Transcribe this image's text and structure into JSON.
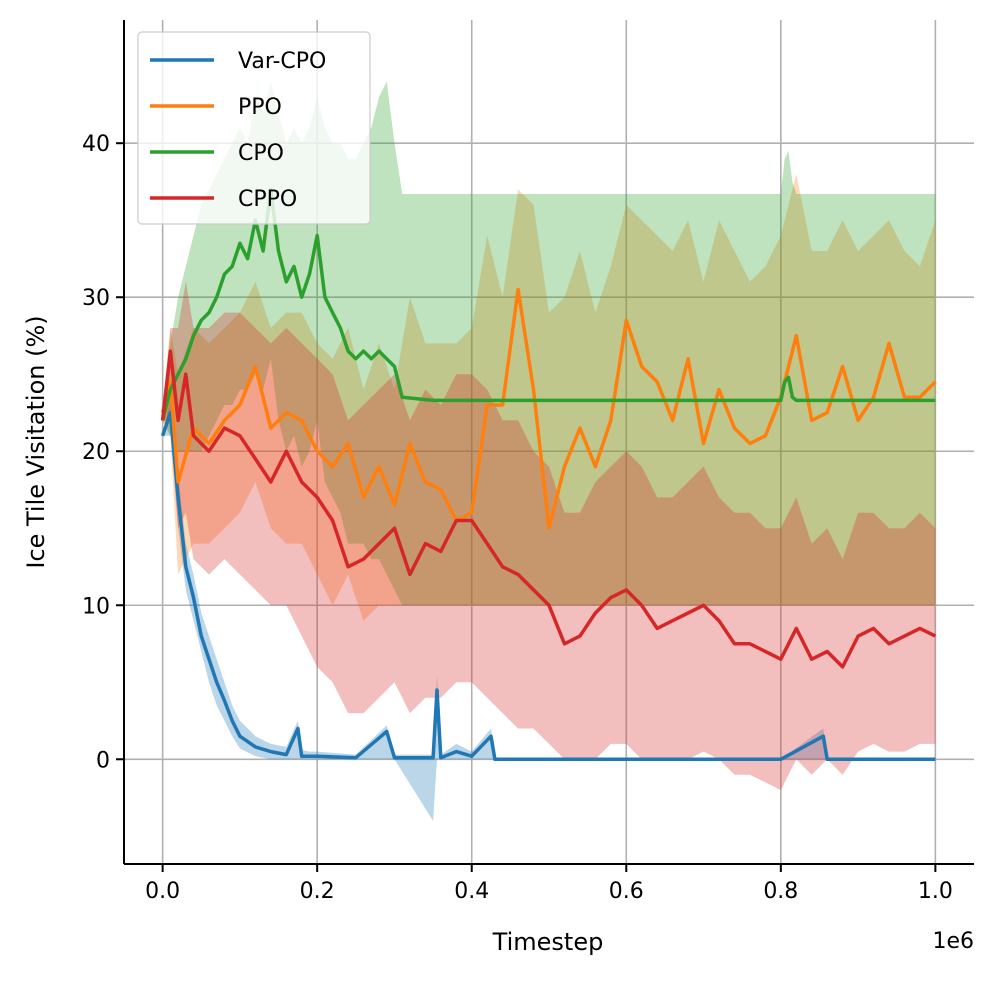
{
  "chart_data": {
    "type": "line",
    "title": "",
    "xlabel": "Timestep",
    "ylabel": "Ice Tile Visitation (%)",
    "x_multiplier_label": "1e6",
    "xlim": [
      -0.05,
      1.05
    ],
    "ylim": [
      -6.8,
      48
    ],
    "xticks": [
      0.0,
      0.2,
      0.4,
      0.6,
      0.8,
      1.0
    ],
    "xtick_labels": [
      "0.0",
      "0.2",
      "0.4",
      "0.6",
      "0.8",
      "1.0"
    ],
    "yticks": [
      0,
      10,
      20,
      30,
      40
    ],
    "ytick_labels": [
      "0",
      "10",
      "20",
      "30",
      "40"
    ],
    "grid": true,
    "legend_position": "top-left",
    "series": [
      {
        "name": "Var-CPO",
        "color": "#1f77b4",
        "x": [
          0.0,
          0.01,
          0.02,
          0.03,
          0.04,
          0.05,
          0.06,
          0.07,
          0.08,
          0.09,
          0.1,
          0.12,
          0.14,
          0.16,
          0.175,
          0.18,
          0.19,
          0.2,
          0.25,
          0.29,
          0.3,
          0.35,
          0.355,
          0.36,
          0.38,
          0.4,
          0.425,
          0.43,
          0.5,
          0.6,
          0.7,
          0.8,
          0.855,
          0.86,
          0.9,
          1.0
        ],
        "values": [
          21.0,
          22.5,
          17.0,
          12.5,
          10.5,
          8.0,
          6.5,
          5.0,
          3.8,
          2.5,
          1.5,
          0.8,
          0.5,
          0.3,
          2.0,
          0.2,
          0.2,
          0.2,
          0.1,
          1.8,
          0.1,
          0.1,
          4.5,
          0.1,
          0.5,
          0.2,
          1.5,
          0.0,
          0.0,
          0.0,
          0.0,
          0.0,
          1.5,
          0.0,
          0.0,
          0.0
        ],
        "lower": [
          21.0,
          21.0,
          15.0,
          11.0,
          9.0,
          7.0,
          5.0,
          3.5,
          2.5,
          1.5,
          0.7,
          0.2,
          0.0,
          0.0,
          0.0,
          0.0,
          0.0,
          0.0,
          0.0,
          0.0,
          0.0,
          -4.0,
          0.0,
          0.0,
          0.0,
          0.0,
          0.0,
          0.0,
          0.0,
          0.0,
          0.0,
          0.0,
          0.0,
          0.0,
          0.0,
          0.0
        ],
        "upper": [
          21.0,
          23.5,
          18.5,
          14.0,
          12.0,
          9.5,
          8.0,
          6.5,
          5.0,
          3.5,
          2.5,
          1.5,
          1.0,
          0.8,
          2.5,
          0.6,
          0.5,
          0.5,
          0.3,
          2.2,
          0.3,
          0.3,
          5.5,
          0.3,
          1.0,
          0.5,
          2.0,
          0.0,
          0.0,
          0.0,
          0.0,
          0.0,
          2.0,
          0.0,
          0.0,
          0.0
        ]
      },
      {
        "name": "PPO",
        "color": "#ff7f0e",
        "x": [
          0.0,
          0.01,
          0.02,
          0.04,
          0.06,
          0.08,
          0.1,
          0.12,
          0.14,
          0.16,
          0.18,
          0.2,
          0.22,
          0.24,
          0.26,
          0.28,
          0.3,
          0.32,
          0.34,
          0.36,
          0.38,
          0.4,
          0.42,
          0.44,
          0.46,
          0.48,
          0.5,
          0.52,
          0.54,
          0.56,
          0.58,
          0.6,
          0.62,
          0.64,
          0.66,
          0.68,
          0.7,
          0.72,
          0.74,
          0.76,
          0.78,
          0.8,
          0.82,
          0.84,
          0.86,
          0.88,
          0.9,
          0.92,
          0.94,
          0.96,
          0.98,
          1.0
        ],
        "values": [
          22.5,
          24.5,
          18.0,
          21.5,
          20.5,
          22.0,
          23.0,
          25.5,
          21.5,
          22.5,
          22.0,
          20.0,
          19.0,
          20.5,
          17.0,
          19.0,
          16.5,
          20.5,
          18.0,
          17.5,
          15.5,
          16.0,
          23.0,
          23.0,
          30.5,
          24.0,
          15.0,
          19.0,
          21.5,
          19.0,
          22.0,
          28.5,
          25.5,
          24.5,
          22.0,
          26.0,
          20.5,
          24.0,
          21.5,
          20.5,
          21.0,
          23.5,
          27.5,
          22.0,
          22.5,
          25.5,
          22.0,
          23.5,
          27.0,
          23.5,
          23.5,
          24.5
        ],
        "lower": [
          22.0,
          21.0,
          12.0,
          14.0,
          14.0,
          15.0,
          16.0,
          18.0,
          15.0,
          14.0,
          14.0,
          12.0,
          10.0,
          12.0,
          9.0,
          10.0,
          10.0,
          10.0,
          10.0,
          10.0,
          10.0,
          10.0,
          10.0,
          10.0,
          10.0,
          10.0,
          10.0,
          10.0,
          10.0,
          10.0,
          10.0,
          10.0,
          10.0,
          10.0,
          10.0,
          10.0,
          10.0,
          10.0,
          10.0,
          10.0,
          10.0,
          10.0,
          10.0,
          10.0,
          10.0,
          10.0,
          10.0,
          10.0,
          10.0,
          10.0,
          10.0,
          10.0
        ],
        "upper": [
          23.0,
          28.0,
          25.0,
          28.0,
          27.0,
          28.0,
          29.0,
          31.0,
          28.0,
          29.0,
          29.0,
          27.0,
          26.0,
          28.0,
          24.0,
          27.0,
          24.0,
          30.0,
          27.0,
          27.0,
          27.0,
          28.0,
          34.0,
          30.0,
          37.0,
          36.0,
          29.0,
          30.0,
          33.0,
          29.0,
          32.0,
          36.0,
          35.0,
          34.0,
          33.0,
          35.0,
          31.0,
          35.0,
          33.0,
          31.0,
          32.0,
          34.0,
          38.0,
          33.0,
          33.0,
          35.0,
          33.0,
          34.0,
          35.0,
          33.0,
          32.0,
          35.0
        ]
      },
      {
        "name": "CPO",
        "color": "#2ca02c",
        "x": [
          0.0,
          0.01,
          0.02,
          0.03,
          0.04,
          0.05,
          0.06,
          0.07,
          0.08,
          0.09,
          0.1,
          0.11,
          0.12,
          0.13,
          0.14,
          0.15,
          0.16,
          0.17,
          0.18,
          0.19,
          0.2,
          0.21,
          0.22,
          0.23,
          0.24,
          0.25,
          0.26,
          0.27,
          0.28,
          0.29,
          0.3,
          0.31,
          0.35,
          0.4,
          0.5,
          0.6,
          0.7,
          0.8,
          0.805,
          0.81,
          0.815,
          0.82,
          0.9,
          1.0
        ],
        "values": [
          22.0,
          24.0,
          25.0,
          26.0,
          27.5,
          28.5,
          29.0,
          30.0,
          31.5,
          32.0,
          33.5,
          32.5,
          35.0,
          33.0,
          37.0,
          33.0,
          31.0,
          32.0,
          30.0,
          31.5,
          34.0,
          30.0,
          29.0,
          28.0,
          26.5,
          26.0,
          26.5,
          26.0,
          26.5,
          26.0,
          25.5,
          23.5,
          23.3,
          23.3,
          23.3,
          23.3,
          23.3,
          23.3,
          24.5,
          24.8,
          23.5,
          23.3,
          23.3,
          23.3
        ],
        "lower": [
          22.0,
          21.0,
          20.0,
          20.0,
          20.0,
          20.0,
          21.0,
          22.0,
          23.0,
          23.0,
          24.0,
          24.0,
          25.0,
          24.0,
          26.0,
          22.0,
          20.0,
          21.0,
          19.0,
          20.0,
          22.0,
          18.0,
          17.0,
          16.0,
          14.0,
          14.0,
          14.0,
          13.0,
          13.0,
          12.0,
          11.0,
          10.0,
          10.0,
          10.0,
          10.0,
          10.0,
          10.0,
          10.0,
          10.0,
          10.0,
          10.0,
          10.0,
          10.0,
          10.0
        ],
        "upper": [
          22.0,
          27.0,
          30.0,
          32.0,
          34.0,
          36.0,
          37.0,
          38.0,
          39.0,
          40.0,
          41.0,
          40.0,
          43.0,
          42.0,
          44.0,
          42.0,
          40.0,
          41.0,
          40.0,
          41.0,
          43.0,
          41.0,
          40.0,
          40.0,
          39.0,
          39.0,
          40.0,
          41.0,
          43.0,
          44.0,
          40.0,
          36.7,
          36.7,
          36.7,
          36.7,
          36.7,
          36.7,
          36.7,
          39.0,
          39.5,
          37.5,
          36.7,
          36.7,
          36.7
        ]
      },
      {
        "name": "CPPO",
        "color": "#d62728",
        "x": [
          0.0,
          0.01,
          0.02,
          0.03,
          0.04,
          0.06,
          0.08,
          0.1,
          0.12,
          0.14,
          0.16,
          0.18,
          0.2,
          0.22,
          0.24,
          0.26,
          0.28,
          0.3,
          0.32,
          0.34,
          0.36,
          0.38,
          0.4,
          0.42,
          0.44,
          0.46,
          0.48,
          0.5,
          0.52,
          0.54,
          0.56,
          0.58,
          0.6,
          0.62,
          0.64,
          0.66,
          0.68,
          0.7,
          0.72,
          0.74,
          0.76,
          0.78,
          0.8,
          0.82,
          0.84,
          0.86,
          0.88,
          0.9,
          0.92,
          0.94,
          0.96,
          0.98,
          1.0
        ],
        "values": [
          22.0,
          26.5,
          22.0,
          25.0,
          21.0,
          20.0,
          21.5,
          21.0,
          19.5,
          18.0,
          20.0,
          18.0,
          17.0,
          15.5,
          12.5,
          13.0,
          14.0,
          15.0,
          12.0,
          14.0,
          13.5,
          15.5,
          15.5,
          14.0,
          12.5,
          12.0,
          11.0,
          10.0,
          7.5,
          8.0,
          9.5,
          10.5,
          11.0,
          10.0,
          8.5,
          9.0,
          9.5,
          10.0,
          9.0,
          7.5,
          7.5,
          7.0,
          6.5,
          8.5,
          6.5,
          7.0,
          6.0,
          8.0,
          8.5,
          7.5,
          8.0,
          8.5,
          8.0
        ],
        "lower": [
          22.0,
          22.0,
          15.0,
          16.0,
          13.0,
          12.0,
          13.0,
          12.0,
          11.0,
          10.0,
          10.0,
          8.0,
          6.0,
          5.0,
          3.0,
          3.0,
          4.0,
          5.0,
          3.0,
          4.0,
          4.0,
          5.0,
          5.0,
          4.0,
          3.0,
          2.0,
          2.0,
          1.0,
          0.0,
          0.0,
          0.0,
          1.0,
          1.0,
          0.0,
          0.0,
          0.0,
          0.0,
          0.5,
          0.0,
          -1.0,
          -1.0,
          -1.5,
          -2.0,
          0.0,
          -1.0,
          0.0,
          -1.0,
          0.5,
          1.0,
          0.5,
          0.5,
          1.0,
          1.0
        ],
        "upper": [
          22.0,
          28.0,
          28.0,
          31.0,
          28.0,
          28.0,
          29.0,
          29.0,
          28.0,
          27.0,
          28.0,
          27.0,
          26.0,
          25.0,
          22.0,
          23.0,
          24.0,
          25.0,
          22.0,
          24.0,
          23.0,
          25.0,
          25.0,
          24.0,
          22.0,
          22.0,
          20.0,
          19.0,
          16.0,
          16.0,
          18.0,
          19.0,
          20.0,
          19.0,
          17.0,
          17.0,
          18.0,
          19.0,
          17.0,
          16.0,
          16.0,
          15.0,
          15.0,
          17.0,
          14.0,
          15.0,
          13.0,
          16.0,
          16.0,
          15.0,
          15.0,
          16.0,
          15.0
        ]
      }
    ]
  }
}
